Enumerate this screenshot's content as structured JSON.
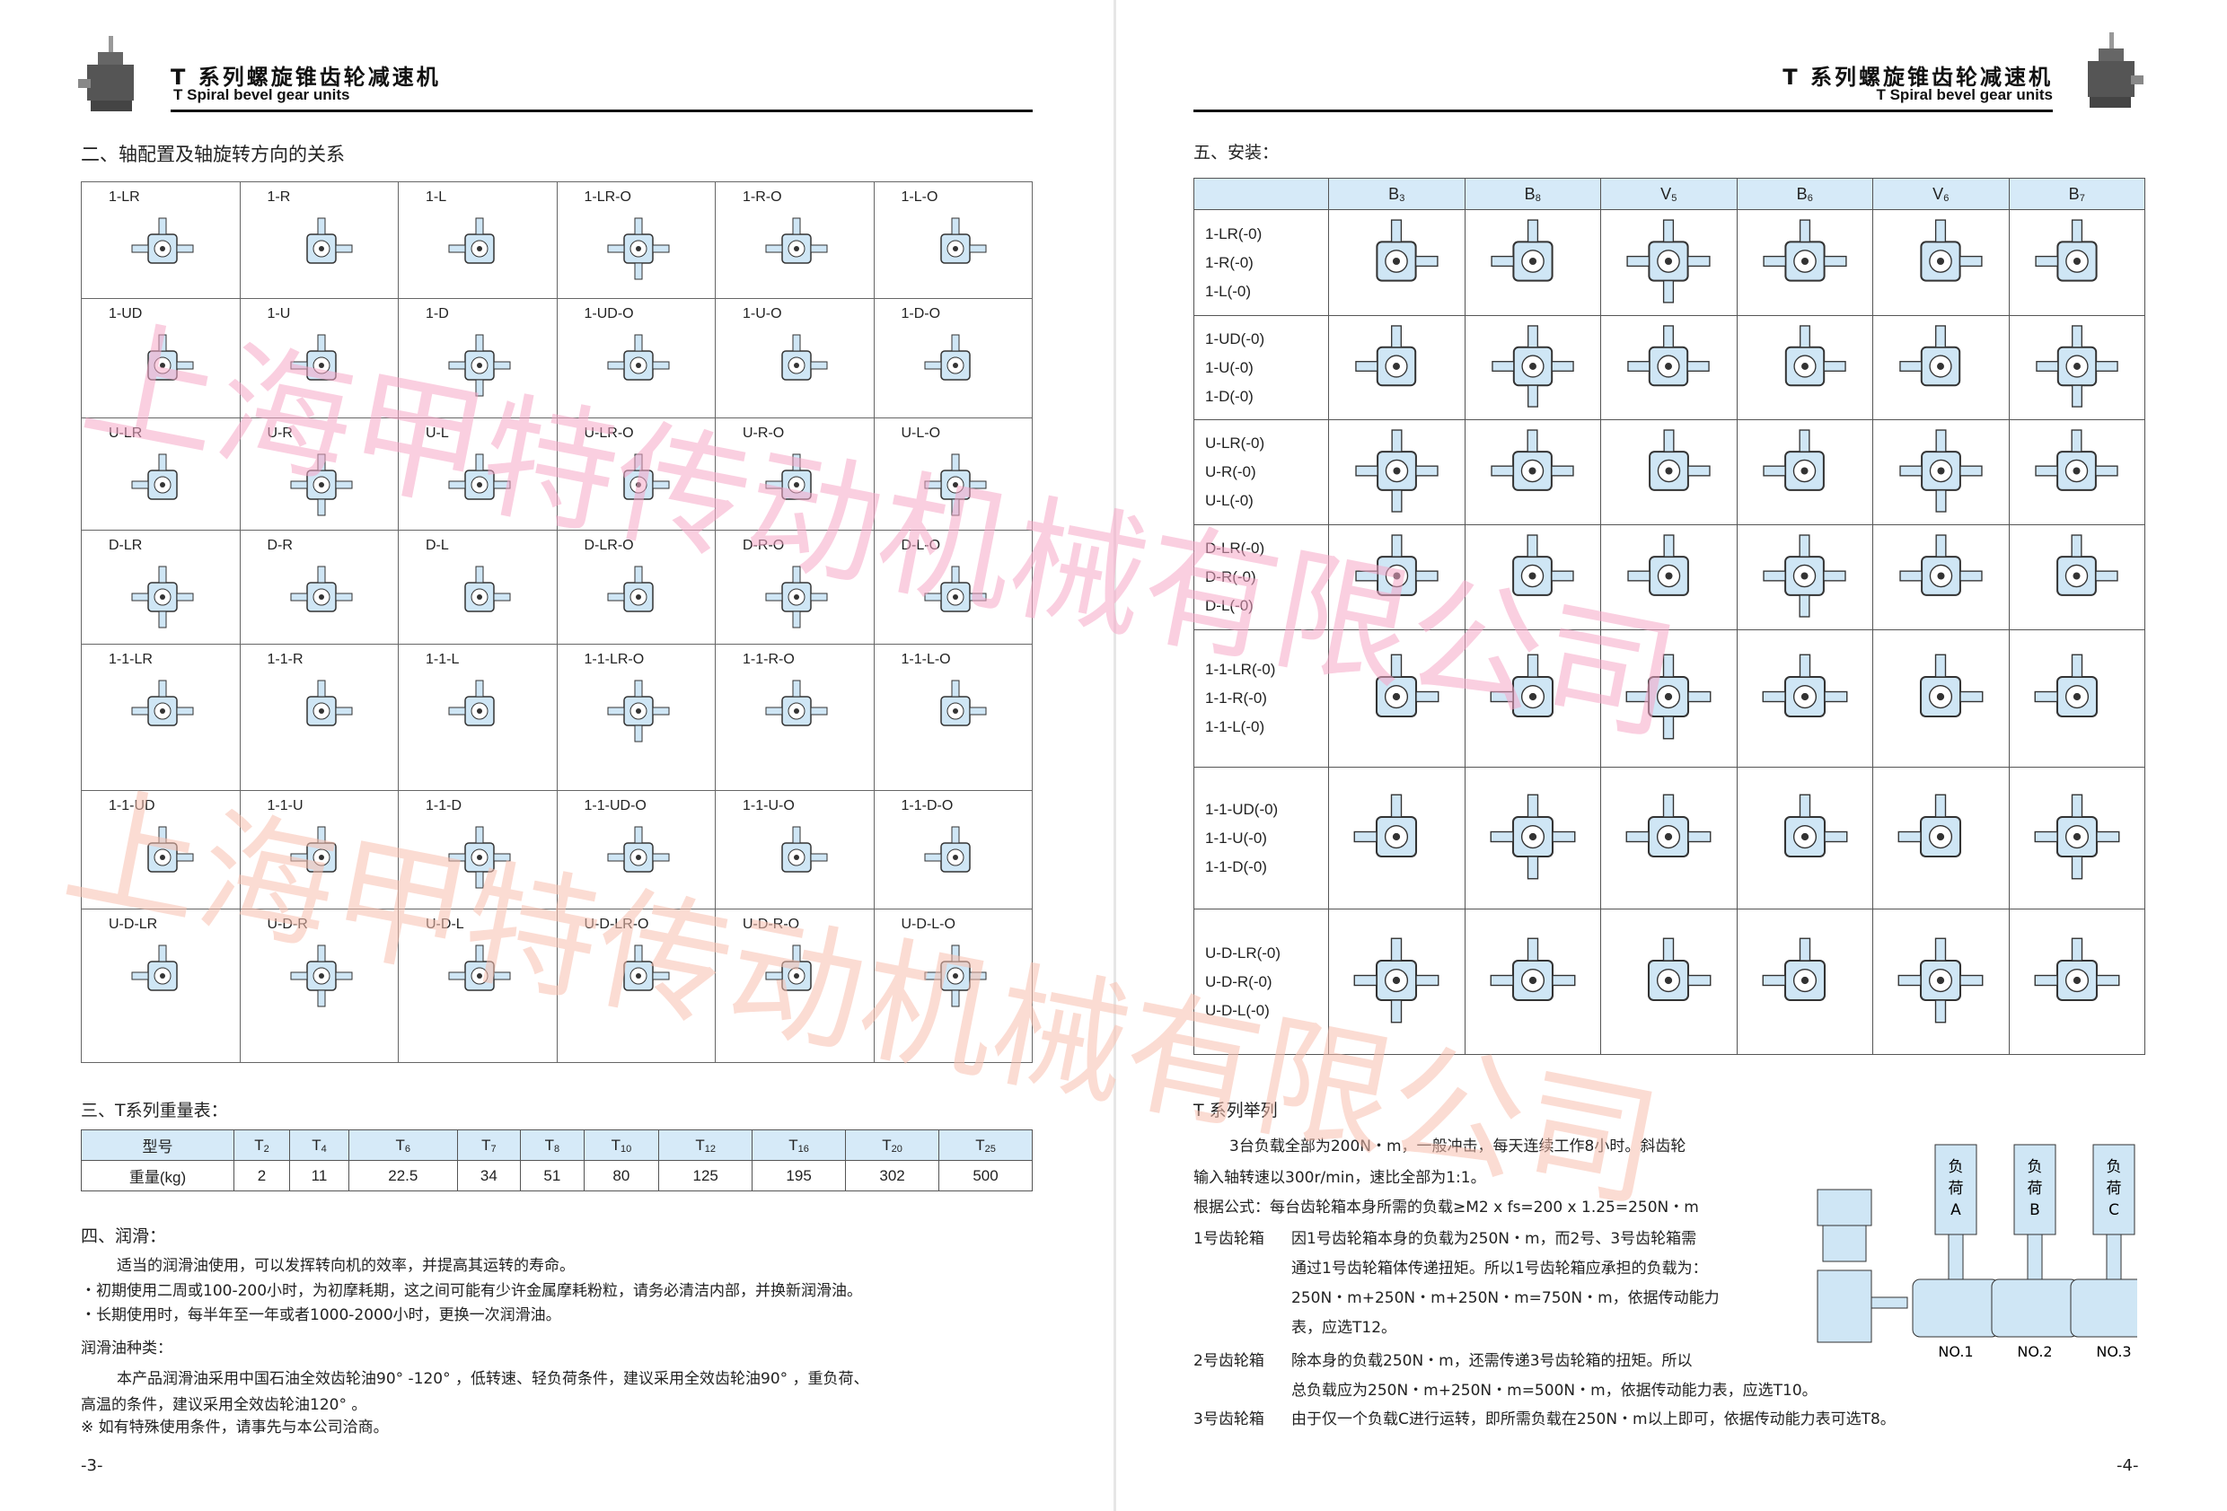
{
  "header": {
    "title_cn": "T 系列螺旋锥齿轮减速机",
    "title_en": "T Spiral bevel gear units"
  },
  "watermark": "上海甲特传动机械有限公司",
  "left": {
    "section2_title": "二、轴配置及轴旋转方向的关系",
    "config_rows": [
      [
        "1-LR",
        "1-R",
        "1-L",
        "1-LR-O",
        "1-R-O",
        "1-L-O"
      ],
      [
        "1-UD",
        "1-U",
        "1-D",
        "1-UD-O",
        "1-U-O",
        "1-D-O"
      ],
      [
        "U-LR",
        "U-R",
        "U-L",
        "U-LR-O",
        "U-R-O",
        "U-L-O"
      ],
      [
        "D-LR",
        "D-R",
        "D-L",
        "D-LR-O",
        "D-R-O",
        "D-L-O"
      ],
      [
        "1-1-LR",
        "1-1-R",
        "1-1-L",
        "1-1-LR-O",
        "1-1-R-O",
        "1-1-L-O"
      ],
      [
        "1-1-UD",
        "1-1-U",
        "1-1-D",
        "1-1-UD-O",
        "1-1-U-O",
        "1-1-D-O"
      ],
      [
        "U-D-LR",
        "U-D-R",
        "U-D-L",
        "U-D-LR-O",
        "U-D-R-O",
        "U-D-L-O"
      ]
    ],
    "section3_title": "三、T系列重量表：",
    "weight_table": {
      "model_label": "型号",
      "weight_label": "重量(kg)",
      "models": [
        {
          "m": "T",
          "s": "2"
        },
        {
          "m": "T",
          "s": "4"
        },
        {
          "m": "T",
          "s": "6"
        },
        {
          "m": "T",
          "s": "7"
        },
        {
          "m": "T",
          "s": "8"
        },
        {
          "m": "T",
          "s": "10"
        },
        {
          "m": "T",
          "s": "12"
        },
        {
          "m": "T",
          "s": "16"
        },
        {
          "m": "T",
          "s": "20"
        },
        {
          "m": "T",
          "s": "25"
        }
      ],
      "weights": [
        "2",
        "11",
        "22.5",
        "34",
        "51",
        "80",
        "125",
        "195",
        "302",
        "500"
      ]
    },
    "section4_title": "四、润滑：",
    "lube_lines": [
      "适当的润滑油使用，可以发挥转向机的效率，并提高其运转的寿命。",
      "・初期使用二周或100-200小时，为初摩耗期，这之间可能有少许金属摩耗粉粒，请务必清洁内部，并换新润滑油。",
      "・长期使用时，每半年至一年或者1000-2000小时，更换一次润滑油。"
    ],
    "oil_title": "润滑油种类：",
    "oil_lines": [
      "本产品润滑油采用中国石油全效齿轮油90° -120° ，低转速、轻负荷条件，建议采用全效齿轮油90° ，重负荷、",
      "高温的条件，建议采用全效齿轮油120° 。",
      "※ 如有特殊使用条件，请事先与本公司洽商。"
    ],
    "page": "-3-"
  },
  "right": {
    "section5_title": "五、安装：",
    "install_headers": [
      {
        "m": "B",
        "s": "3"
      },
      {
        "m": "B",
        "s": "8"
      },
      {
        "m": "V",
        "s": "5"
      },
      {
        "m": "B",
        "s": "6"
      },
      {
        "m": "V",
        "s": "6"
      },
      {
        "m": "B",
        "s": "7"
      }
    ],
    "install_rows": [
      [
        "1-LR(-0)",
        "1-R(-0)",
        "1-L(-0)"
      ],
      [
        "1-UD(-0)",
        "1-U(-0)",
        "1-D(-0)"
      ],
      [
        "U-LR(-0)",
        "U-R(-0)",
        "U-L(-0)"
      ],
      [
        "D-LR(-0)",
        "D-R(-0)",
        "D-L(-0)"
      ],
      [
        "1-1-LR(-0)",
        "1-1-R(-0)",
        "1-1-L(-0)"
      ],
      [
        "1-1-UD(-0)",
        "1-1-U(-0)",
        "1-1-D(-0)"
      ],
      [
        "U-D-LR(-0)",
        "U-D-R(-0)",
        "U-D-L(-0)"
      ]
    ],
    "example_title": "T 系列举列",
    "example_lines": [
      "3台负载全部为200N・m，一般冲击，每天连续工作8小时。斜齿轮",
      "输入轴转速以300r/min，速比全部为1:1。",
      "根据公式：每台齿轮箱本身所需的负载≥M2 x fs=200 x 1.25=250N・m"
    ],
    "gearboxes": [
      {
        "label": "1号齿轮箱",
        "lines": [
          "因1号齿轮箱本身的负载为250N・m，而2号、3号齿轮箱需",
          "通过1号齿轮箱体传递扭矩。所以1号齿轮箱应承担的负载为：",
          "250N・m+250N・m+250N・m=750N・m，依据传动能力",
          "表，应选T12。"
        ]
      },
      {
        "label": "2号齿轮箱",
        "lines": [
          "除本身的负载250N・m，还需传递3号齿轮箱的扭矩。所以",
          "总负载应为250N・m+250N・m=500N・m，依据传动能力表，应选T10。"
        ]
      },
      {
        "label": "3号齿轮箱",
        "lines": [
          "由于仅一个负载C进行运转，即所需负载在250N・m以上即可，依据传动能力表可选T8。"
        ]
      }
    ],
    "diagram": {
      "loads": [
        "负荷A",
        "负荷B",
        "负荷C"
      ],
      "units": [
        "NO.1",
        "NO.2",
        "NO.3"
      ]
    },
    "page": "-4-"
  },
  "colors": {
    "header_fill": "#d6eaf8",
    "part_fill": "#cfe6f5",
    "watermark": "#f7a8c8"
  }
}
